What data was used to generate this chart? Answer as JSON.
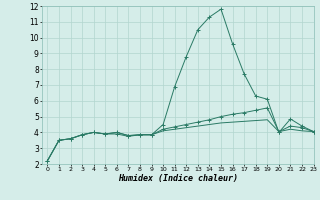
{
  "line1_x": [
    0,
    1,
    2,
    3,
    4,
    5,
    6,
    7,
    8,
    9,
    10,
    11,
    12,
    13,
    14,
    15,
    16,
    17,
    18,
    19,
    20,
    21,
    22,
    23
  ],
  "line1_y": [
    2.2,
    3.5,
    3.6,
    3.85,
    4.0,
    3.9,
    3.9,
    3.75,
    3.85,
    3.85,
    4.5,
    6.9,
    8.8,
    10.5,
    11.3,
    11.8,
    9.6,
    7.7,
    6.3,
    6.1,
    4.0,
    4.85,
    4.4,
    4.05
  ],
  "line2_x": [
    0,
    1,
    2,
    3,
    4,
    5,
    6,
    7,
    8,
    9,
    10,
    11,
    12,
    13,
    14,
    15,
    16,
    17,
    18,
    19,
    20,
    21,
    22,
    23
  ],
  "line2_y": [
    2.2,
    3.5,
    3.6,
    3.85,
    4.0,
    3.9,
    4.0,
    3.8,
    3.85,
    3.85,
    4.2,
    4.35,
    4.5,
    4.65,
    4.8,
    5.0,
    5.15,
    5.25,
    5.4,
    5.55,
    4.05,
    4.4,
    4.3,
    4.05
  ],
  "line3_x": [
    0,
    1,
    2,
    3,
    4,
    5,
    6,
    7,
    8,
    9,
    10,
    11,
    12,
    13,
    14,
    15,
    16,
    17,
    18,
    19,
    20,
    21,
    22,
    23
  ],
  "line3_y": [
    2.2,
    3.5,
    3.6,
    3.85,
    4.0,
    3.9,
    4.0,
    3.8,
    3.85,
    3.85,
    4.1,
    4.2,
    4.3,
    4.4,
    4.5,
    4.6,
    4.65,
    4.7,
    4.75,
    4.8,
    4.05,
    4.2,
    4.1,
    4.05
  ],
  "color": "#2a7a65",
  "bg_color": "#d5ede9",
  "grid_color": "#b2d5cf",
  "xlabel": "Humidex (Indice chaleur)",
  "xlim": [
    -0.5,
    23
  ],
  "ylim": [
    2,
    12
  ],
  "xticks": [
    0,
    1,
    2,
    3,
    4,
    5,
    6,
    7,
    8,
    9,
    10,
    11,
    12,
    13,
    14,
    15,
    16,
    17,
    18,
    19,
    20,
    21,
    22,
    23
  ],
  "yticks": [
    2,
    3,
    4,
    5,
    6,
    7,
    8,
    9,
    10,
    11,
    12
  ]
}
